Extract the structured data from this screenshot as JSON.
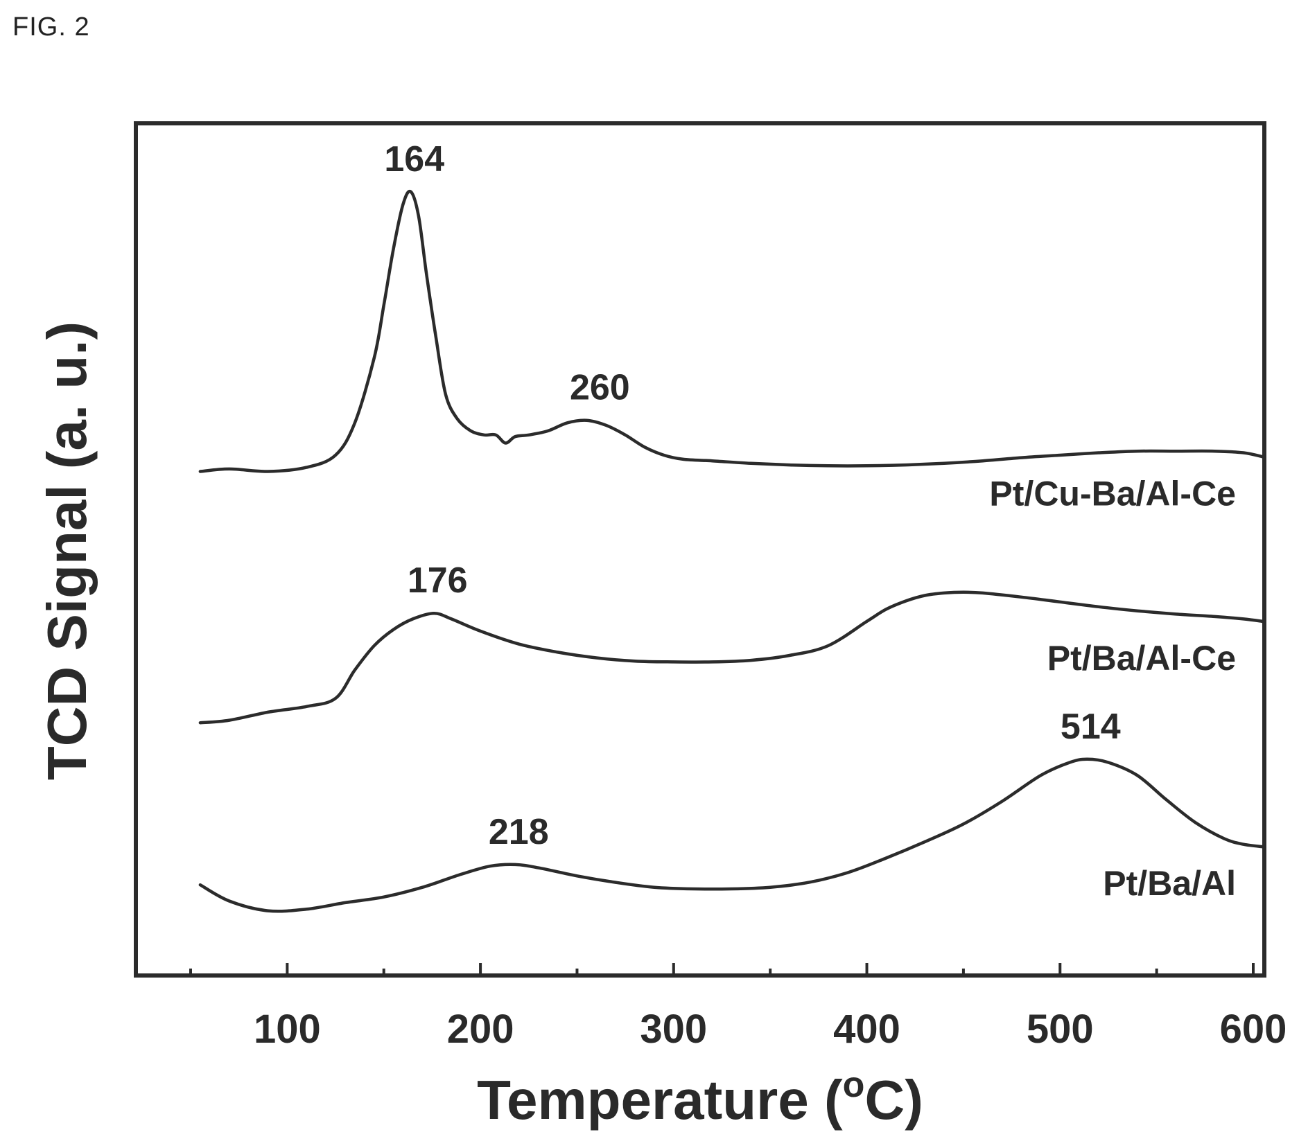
{
  "figure_label": "FIG. 2",
  "chart_data": {
    "type": "line",
    "title": "",
    "xlabel": "Temperature (°C)",
    "xlabel_main": "Temperature (",
    "xlabel_sup": "o",
    "xlabel_end": "C)",
    "ylabel": "TCD Signal (a. u.)",
    "xlim": [
      50,
      610
    ],
    "ylim": [
      0,
      100
    ],
    "x_ticks": [
      100,
      200,
      300,
      400,
      500,
      600
    ],
    "x_minor_ticks": [
      50,
      150,
      250,
      350,
      450,
      550
    ],
    "grid": false,
    "series": [
      {
        "name": "Pt/Cu-Ba/Al-Ce",
        "x": [
          55,
          70,
          90,
          110,
          125,
          135,
          145,
          150,
          155,
          160,
          164,
          168,
          172,
          177,
          182,
          188,
          195,
          202,
          208,
          213,
          218,
          225,
          235,
          245,
          255,
          265,
          275,
          285,
          295,
          305,
          320,
          340,
          360,
          380,
          400,
          420,
          440,
          460,
          480,
          500,
          520,
          540,
          560,
          580,
          595,
          605
        ],
        "y": [
          61.5,
          61.8,
          61.5,
          62.0,
          63.5,
          67.5,
          75.5,
          82.0,
          89.0,
          94.5,
          96.0,
          93.0,
          86.0,
          78.0,
          71.0,
          68.0,
          66.5,
          66.0,
          66.0,
          65.0,
          65.8,
          66.0,
          66.5,
          67.5,
          67.8,
          67.2,
          66.0,
          64.5,
          63.5,
          63.0,
          62.8,
          62.5,
          62.3,
          62.2,
          62.2,
          62.3,
          62.5,
          62.8,
          63.2,
          63.5,
          63.8,
          64.0,
          64.0,
          64.0,
          63.8,
          63.3
        ],
        "label_position": "lower-right"
      },
      {
        "name": "Pt/Ba/Al-Ce",
        "x": [
          55,
          70,
          90,
          110,
          125,
          135,
          145,
          155,
          165,
          176,
          185,
          200,
          220,
          240,
          260,
          280,
          300,
          320,
          340,
          360,
          380,
          400,
          410,
          420,
          430,
          440,
          450,
          460,
          480,
          500,
          520,
          540,
          560,
          580,
          595,
          605
        ],
        "y": [
          30.5,
          30.8,
          31.8,
          32.5,
          33.5,
          37.0,
          40.0,
          42.0,
          43.3,
          44.0,
          43.3,
          41.8,
          40.2,
          39.2,
          38.5,
          38.1,
          38.0,
          38.0,
          38.2,
          38.8,
          40.0,
          43.0,
          44.5,
          45.5,
          46.2,
          46.5,
          46.6,
          46.5,
          46.0,
          45.4,
          44.8,
          44.3,
          43.9,
          43.6,
          43.3,
          43.0
        ],
        "label_position": "lower-right"
      },
      {
        "name": "Pt/Ba/Al",
        "x": [
          55,
          70,
          90,
          110,
          130,
          150,
          170,
          190,
          205,
          218,
          230,
          250,
          270,
          290,
          310,
          330,
          350,
          370,
          390,
          410,
          430,
          450,
          470,
          490,
          505,
          514,
          525,
          540,
          555,
          570,
          585,
          595,
          605
        ],
        "y": [
          10.5,
          8.5,
          7.3,
          7.5,
          8.3,
          9.0,
          10.2,
          11.8,
          12.8,
          13.0,
          12.6,
          11.6,
          10.8,
          10.2,
          10.0,
          10.0,
          10.2,
          10.8,
          12.0,
          13.8,
          15.8,
          18.0,
          20.8,
          24.0,
          25.6,
          26.0,
          25.6,
          24.0,
          21.0,
          18.2,
          16.2,
          15.5,
          15.2
        ],
        "label_position": "lower-right"
      }
    ],
    "annotations": [
      {
        "text": "164",
        "x": 164,
        "y": 96.0
      },
      {
        "text": "260",
        "x": 260,
        "y": 67.8
      },
      {
        "text": "176",
        "x": 176,
        "y": 44.0
      },
      {
        "text": "218",
        "x": 218,
        "y": 13.0
      },
      {
        "text": "514",
        "x": 514,
        "y": 26.0
      }
    ]
  }
}
